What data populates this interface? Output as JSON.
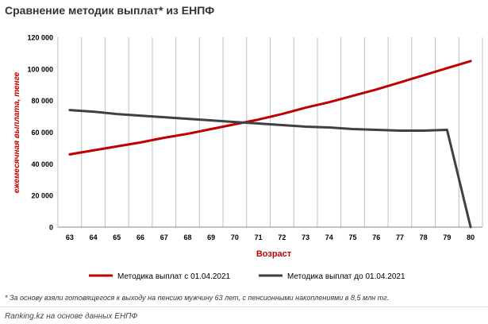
{
  "chart_data": {
    "type": "line",
    "title": "Сравнение методик выплат* из ЕНПФ",
    "xlabel": "Возраст",
    "ylabel": "ежемесячная выплата,  тенге",
    "categories": [
      "63",
      "64",
      "65",
      "66",
      "67",
      "68",
      "69",
      "70",
      "71",
      "72",
      "73",
      "74",
      "75",
      "76",
      "77",
      "78",
      "79",
      "80"
    ],
    "yticks": [
      "0",
      "20 000",
      "40 000",
      "60 000",
      "80 000",
      "100 000",
      "120 000"
    ],
    "ylim": [
      0,
      120000
    ],
    "grid": "vertical",
    "legend_position": "bottom",
    "series": [
      {
        "name": "Методика выплат с 01.04.2021",
        "color": "#c00000",
        "values": [
          46000,
          48500,
          51000,
          53500,
          56500,
          59000,
          62000,
          65000,
          68000,
          71500,
          75500,
          79000,
          83000,
          87000,
          91500,
          96000,
          100500,
          105000
        ]
      },
      {
        "name": "Методика выплат до 01.04.2021",
        "color": "#404040",
        "values": [
          74000,
          73000,
          71500,
          70500,
          69500,
          68500,
          67500,
          66500,
          65500,
          64500,
          63500,
          63000,
          62000,
          61500,
          61000,
          61000,
          61500,
          0
        ]
      }
    ],
    "footnote": "* За основу взяли готовящегося к выходу на пенсию мужчину 63 лет, с пенсионными накоплениями в 8,5 млн тг.",
    "source": "Ranking.kz на основе данных ЕНПФ"
  }
}
